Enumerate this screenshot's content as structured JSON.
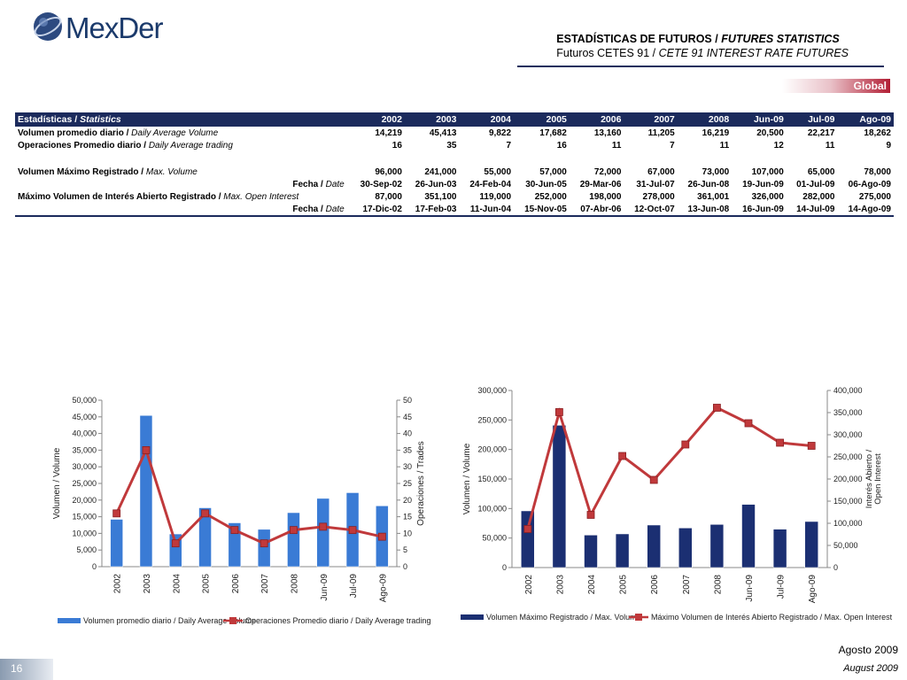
{
  "logo": {
    "text": "MexDer"
  },
  "header": {
    "title_es": "ESTADÍSTICAS DE FUTUROS",
    "title_en": "FUTURES STATISTICS",
    "subtitle_es": "Futuros CETES 91",
    "subtitle_en": "CETE 91 INTEREST RATE FUTURES",
    "badge": "Global"
  },
  "table": {
    "header_label_es": "Estadísticas",
    "header_label_en": "Statistics",
    "columns": [
      "2002",
      "2003",
      "2004",
      "2005",
      "2006",
      "2007",
      "2008",
      "Jun-09",
      "Jul-09",
      "Ago-09"
    ],
    "rows": [
      {
        "label_es": "Volumen promedio diario",
        "label_en": "Daily Average Volume",
        "values": [
          "14,219",
          "45,413",
          "9,822",
          "17,682",
          "13,160",
          "11,205",
          "16,219",
          "20,500",
          "22,217",
          "18,262"
        ]
      },
      {
        "label_es": "Operaciones Promedio diario",
        "label_en": "Daily Average trading",
        "values": [
          "16",
          "35",
          "7",
          "16",
          "11",
          "7",
          "11",
          "12",
          "11",
          "9"
        ]
      },
      {
        "label_es": "Volumen Máximo Registrado",
        "label_en": "Max. Volume",
        "values": [
          "96,000",
          "241,000",
          "55,000",
          "57,000",
          "72,000",
          "67,000",
          "73,000",
          "107,000",
          "65,000",
          "78,000"
        ]
      },
      {
        "label_es": "Fecha",
        "label_en": "Date",
        "values": [
          "30-Sep-02",
          "26-Jun-03",
          "24-Feb-04",
          "30-Jun-05",
          "29-Mar-06",
          "31-Jul-07",
          "26-Jun-08",
          "19-Jun-09",
          "01-Jul-09",
          "06-Ago-09"
        ]
      },
      {
        "label_es": "Máximo Volumen de Interés Abierto Registrado",
        "label_en": "Max. Open Interest",
        "values": [
          "87,000",
          "351,100",
          "119,000",
          "252,000",
          "198,000",
          "278,000",
          "361,001",
          "326,000",
          "282,000",
          "275,000"
        ]
      },
      {
        "label_es": "Fecha",
        "label_en": "Date",
        "values": [
          "17-Dic-02",
          "17-Feb-03",
          "11-Jun-04",
          "15-Nov-05",
          "07-Abr-06",
          "12-Oct-07",
          "13-Jun-08",
          "16-Jun-09",
          "14-Jul-09",
          "14-Ago-09"
        ]
      }
    ]
  },
  "chart_data": [
    {
      "type": "bar",
      "categories": [
        "2002",
        "2003",
        "2004",
        "2005",
        "2006",
        "2007",
        "2008",
        "Jun-09",
        "Jul-09",
        "Ago-09"
      ],
      "series": [
        {
          "name": "Volumen promedio diario / Daily Average Volume",
          "kind": "bar",
          "axis": "left",
          "values": [
            14219,
            45413,
            9822,
            17682,
            13160,
            11205,
            16219,
            20500,
            22217,
            18262
          ]
        },
        {
          "name": "Operaciones Promedio diario / Daily Average trading",
          "kind": "line",
          "axis": "right",
          "values": [
            16,
            35,
            7,
            16,
            11,
            7,
            11,
            12,
            11,
            9
          ]
        }
      ],
      "ylabel": "Volumen / Volume",
      "y2label": "Operaciones / Trades",
      "ylim": [
        0,
        50000
      ],
      "y2lim": [
        0,
        50
      ],
      "yticks": [
        "0",
        "5,000",
        "10,000",
        "15,000",
        "20,000",
        "25,000",
        "30,000",
        "35,000",
        "40,000",
        "45,000",
        "50,000"
      ],
      "y2ticks": [
        "0",
        "5",
        "10",
        "15",
        "20",
        "25",
        "30",
        "35",
        "40",
        "45",
        "50"
      ],
      "legend": "bottom",
      "colors": {
        "bar": "#3a7bd5",
        "line": "#c0393b"
      }
    },
    {
      "type": "bar",
      "categories": [
        "2002",
        "2003",
        "2004",
        "2005",
        "2006",
        "2007",
        "2008",
        "Jun-09",
        "Jul-09",
        "Ago-09"
      ],
      "series": [
        {
          "name": "Volumen Máximo Registrado / Max. Volume",
          "kind": "bar",
          "axis": "left",
          "values": [
            96000,
            241000,
            55000,
            57000,
            72000,
            67000,
            73000,
            107000,
            65000,
            78000
          ]
        },
        {
          "name": "Máximo Volumen de Interés Abierto Registrado / Max. Open Interest",
          "kind": "line",
          "axis": "right",
          "values": [
            87000,
            351100,
            119000,
            252000,
            198000,
            278000,
            361001,
            326000,
            282000,
            275000
          ]
        }
      ],
      "ylabel": "Volumen / Volume",
      "y2label_l1": "Interés Abierto /",
      "y2label_l2": "Open Interest",
      "ylim": [
        0,
        300000
      ],
      "y2lim": [
        0,
        400000
      ],
      "yticks": [
        "0",
        "50,000",
        "100,000",
        "150,000",
        "200,000",
        "250,000",
        "300,000"
      ],
      "y2ticks": [
        "0",
        "50,000",
        "100,000",
        "150,000",
        "200,000",
        "250,000",
        "300,000",
        "350,000",
        "400,000"
      ],
      "legend": "bottom",
      "colors": {
        "bar": "#1b2f72",
        "line": "#c0393b"
      }
    }
  ],
  "footer": {
    "date_es": "Agosto 2009",
    "date_en": "August 2009",
    "page": "16"
  }
}
